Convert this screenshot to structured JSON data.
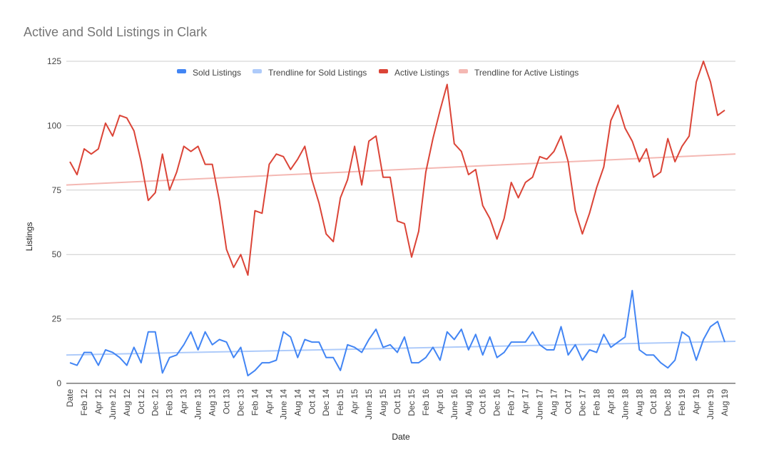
{
  "chart_data": {
    "type": "line",
    "title": "Active and Sold Listings in Clark",
    "xlabel": "Date",
    "ylabel": "Listings",
    "ylim": [
      0,
      125
    ],
    "yticks": [
      0,
      25,
      50,
      75,
      100,
      125
    ],
    "grid": true,
    "legend_position": "top",
    "x_ticklabels": [
      "Date",
      "Feb 12",
      "Apr 12",
      "June 12",
      "Aug 12",
      "Oct 12",
      "Dec 12",
      "Feb 13",
      "Apr 13",
      "June 13",
      "Aug 13",
      "Oct 13",
      "Dec 13",
      "Feb 14",
      "Apr 14",
      "June 14",
      "Aug 14",
      "Oct 14",
      "Dec 14",
      "Feb 15",
      "Apr 15",
      "June 15",
      "Aug 15",
      "Oct 15",
      "Dec 15",
      "Feb 16",
      "Apr 16",
      "June 16",
      "Aug 16",
      "Oct 16",
      "Dec 16",
      "Feb 17",
      "Apr 17",
      "June 17",
      "Aug 17",
      "Oct 17",
      "Dec 17",
      "Feb 18",
      "Apr 18",
      "June 18",
      "Aug 18",
      "Oct 18",
      "Dec 18",
      "Feb 19",
      "Apr 19",
      "June 19",
      "Aug 19"
    ],
    "series": [
      {
        "name": "Sold Listings",
        "color": "#4285f4",
        "values": [
          8,
          7,
          12,
          12,
          7,
          13,
          12,
          10,
          7,
          14,
          8,
          20,
          20,
          4,
          10,
          11,
          15,
          20,
          13,
          20,
          15,
          17,
          16,
          10,
          14,
          3,
          5,
          8,
          8,
          9,
          20,
          18,
          10,
          17,
          16,
          16,
          10,
          10,
          5,
          15,
          14,
          12,
          17,
          21,
          14,
          15,
          12,
          18,
          8,
          8,
          10,
          14,
          9,
          20,
          17,
          21,
          13,
          19,
          11,
          18,
          10,
          12,
          16,
          16,
          16,
          20,
          15,
          13,
          13,
          22,
          11,
          15,
          9,
          13,
          12,
          19,
          14,
          16,
          18,
          36,
          13,
          11,
          11,
          8,
          6,
          9,
          20,
          18,
          9,
          17,
          22,
          24,
          16
        ]
      },
      {
        "name": "Trendline for Sold Listings",
        "color": "#aecbfa",
        "trendline": true,
        "start": 11,
        "end": 16.3
      },
      {
        "name": "Active Listings",
        "color": "#db4437",
        "values": [
          86,
          81,
          91,
          89,
          91,
          101,
          96,
          104,
          103,
          98,
          86,
          71,
          74,
          89,
          75,
          82,
          92,
          90,
          92,
          85,
          85,
          71,
          52,
          45,
          50,
          42,
          67,
          66,
          85,
          89,
          88,
          83,
          87,
          92,
          79,
          70,
          58,
          55,
          72,
          79,
          92,
          77,
          94,
          96,
          80,
          80,
          63,
          62,
          49,
          59,
          82,
          95,
          106,
          116,
          93,
          90,
          81,
          83,
          69,
          64,
          56,
          64,
          78,
          72,
          78,
          80,
          88,
          87,
          90,
          96,
          86,
          67,
          58,
          66,
          76,
          84,
          102,
          108,
          99,
          94,
          86,
          91,
          80,
          82,
          95,
          86,
          92,
          96,
          117,
          125,
          117,
          104,
          106
        ]
      },
      {
        "name": "Trendline for Active Listings",
        "color": "#f4b8b3",
        "trendline": true,
        "start": 77,
        "end": 89
      }
    ]
  }
}
